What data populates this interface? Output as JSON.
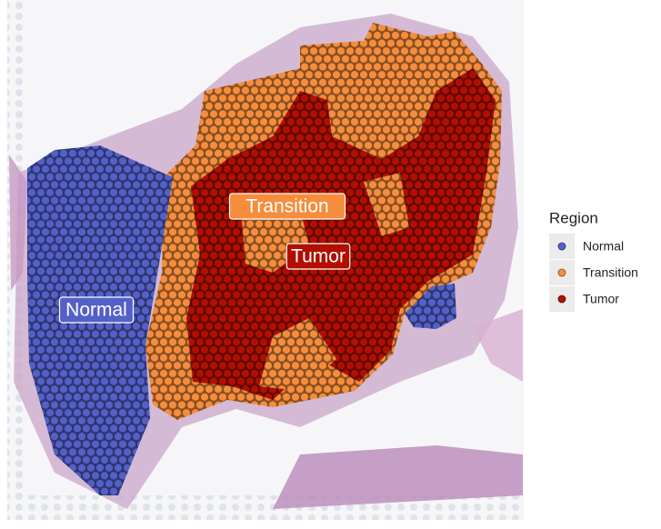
{
  "legend": {
    "title": "Region",
    "items": [
      {
        "label": "Normal",
        "color": "#5360c8"
      },
      {
        "label": "Transition",
        "color": "#f58d3c"
      },
      {
        "label": "Tumor",
        "color": "#b00f02"
      }
    ]
  }
}
